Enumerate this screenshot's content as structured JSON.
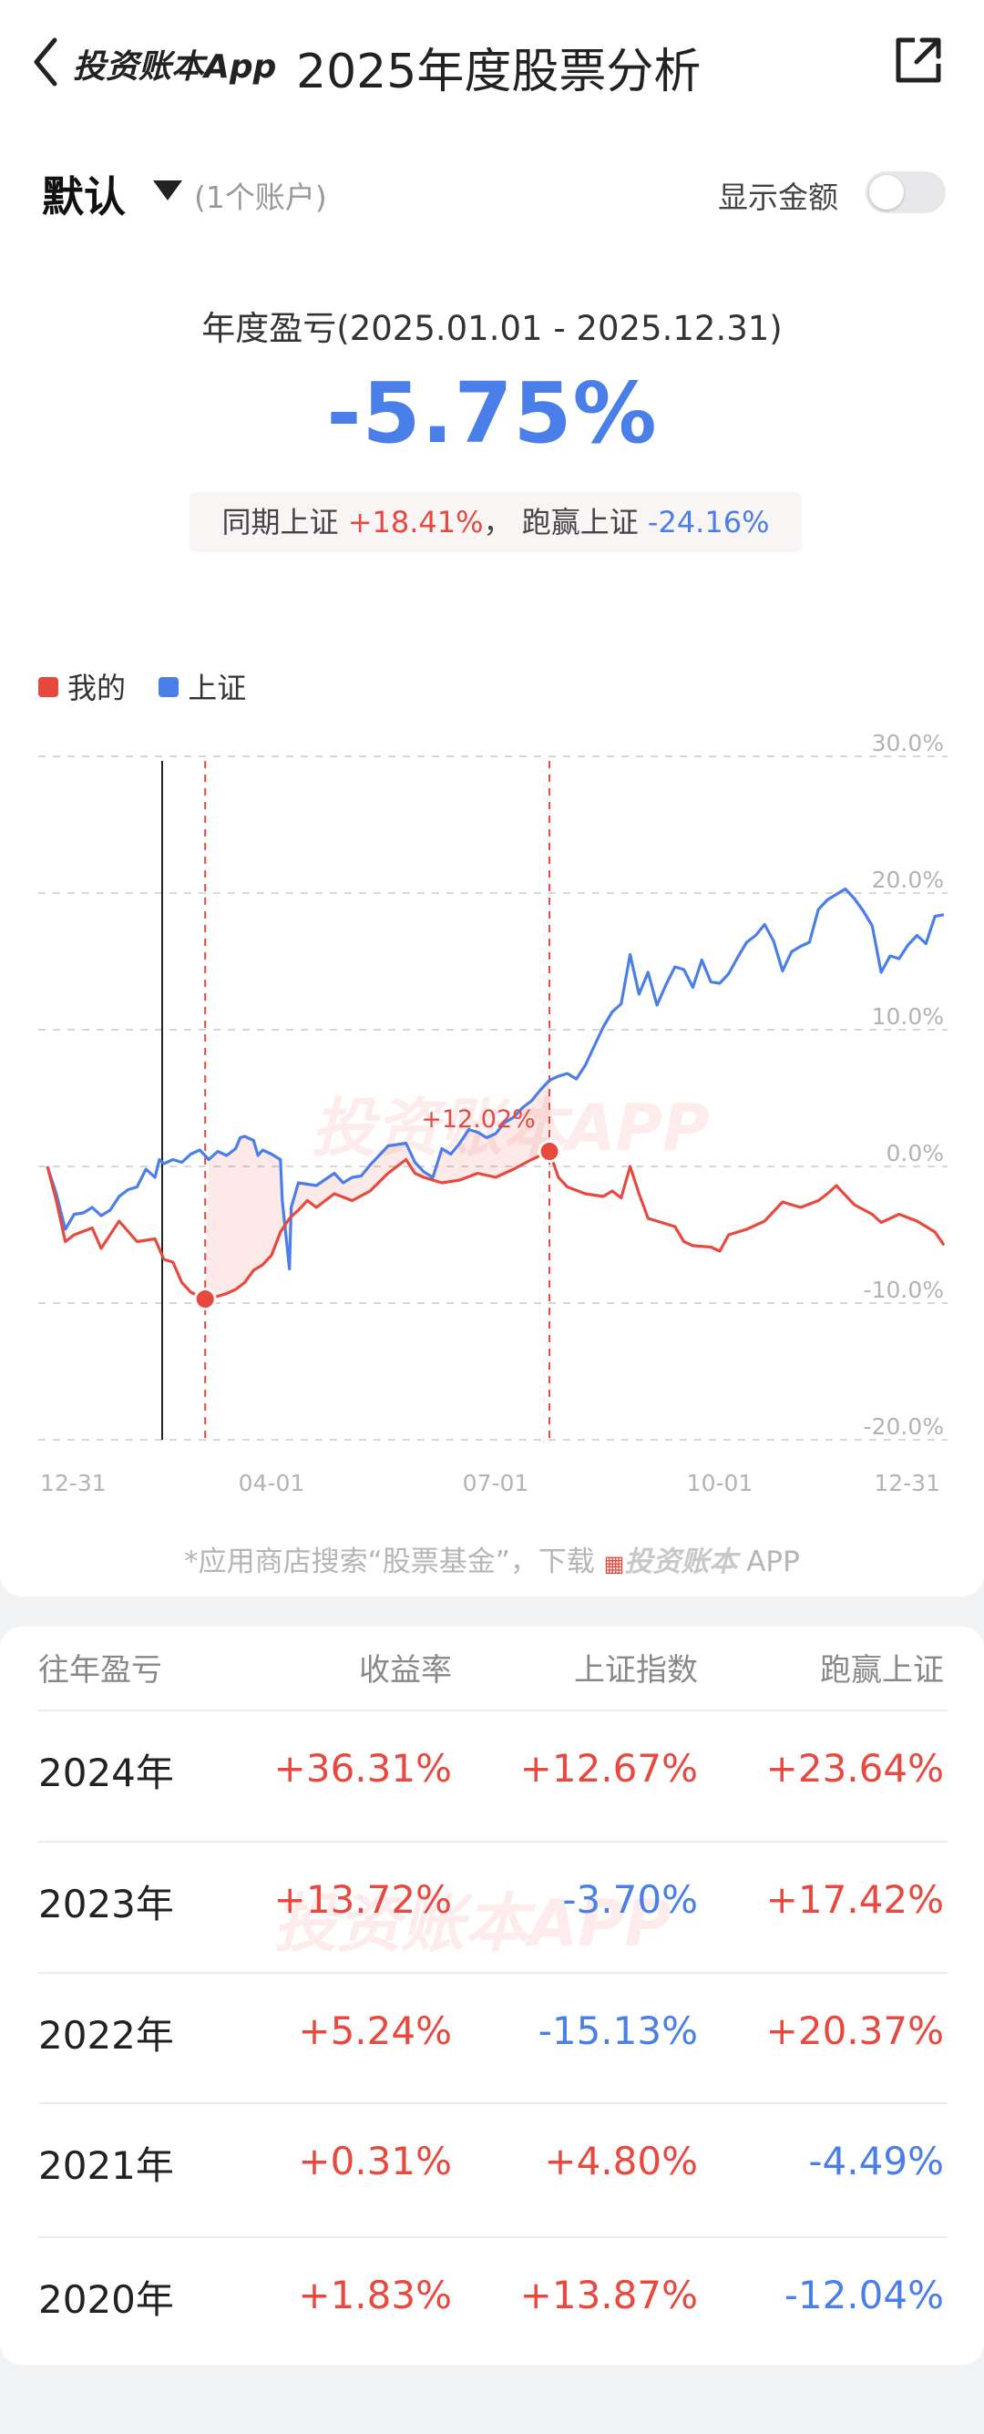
{
  "nav": {
    "logo": "投资账本App",
    "title": "2025年度股票分析",
    "icons": {
      "back": "chevron-left-icon",
      "share": "share-icon"
    }
  },
  "account": {
    "name": "默认",
    "count": "(1个账户)",
    "show_amount_label": "显示金额",
    "show_amount_on": false
  },
  "summary": {
    "period": "年度盈亏(2025.01.01 - 2025.12.31)",
    "return_pct": "-5.75%",
    "bench_label": "同期上证",
    "bench_value": "+18.41%",
    "sep": "，",
    "beat_label": "跑赢上证",
    "beat_value": "-24.16%"
  },
  "legend": {
    "mine": "我的",
    "index": "上证"
  },
  "watermark": "投资账本APP",
  "colors": {
    "mine": "#e8493f",
    "index": "#4a7ee8",
    "positive": "#e8493f",
    "negative": "#4a7ee8"
  },
  "chart_data": {
    "type": "line",
    "x_ticks": [
      "12-31",
      "04-01",
      "07-01",
      "10-01",
      "12-31"
    ],
    "y_ticks": [
      "30.0%",
      "20.0%",
      "10.0%",
      "0.0%",
      "-10.0%",
      "-20.0%"
    ],
    "ylim": [
      -20,
      30
    ],
    "grid": true,
    "legend_position": "top-left",
    "annotation": {
      "label": "+12.02%",
      "x": 0.56
    },
    "markers": [
      {
        "x": 0.176,
        "y": -9.7
      },
      {
        "x": 0.56,
        "y": 1.1
      }
    ],
    "series": [
      {
        "name": "我的",
        "color": "#e8493f",
        "points": [
          [
            0,
            0
          ],
          [
            0.01,
            -2.5
          ],
          [
            0.02,
            -5.5
          ],
          [
            0.03,
            -5
          ],
          [
            0.05,
            -4.5
          ],
          [
            0.06,
            -6
          ],
          [
            0.08,
            -4
          ],
          [
            0.1,
            -5.5
          ],
          [
            0.12,
            -5.3
          ],
          [
            0.13,
            -6.8
          ],
          [
            0.14,
            -7
          ],
          [
            0.15,
            -8.5
          ],
          [
            0.16,
            -9.2
          ],
          [
            0.176,
            -9.7
          ],
          [
            0.19,
            -9.5
          ],
          [
            0.2,
            -9.3
          ],
          [
            0.21,
            -9
          ],
          [
            0.22,
            -8.5
          ],
          [
            0.23,
            -7.6
          ],
          [
            0.24,
            -7.2
          ],
          [
            0.25,
            -6.5
          ],
          [
            0.26,
            -4.8
          ],
          [
            0.27,
            -3.8
          ],
          [
            0.28,
            -3.2
          ],
          [
            0.29,
            -2.5
          ],
          [
            0.3,
            -3
          ],
          [
            0.32,
            -2
          ],
          [
            0.34,
            -2.5
          ],
          [
            0.36,
            -1.8
          ],
          [
            0.38,
            -0.5
          ],
          [
            0.4,
            0.5
          ],
          [
            0.41,
            -0.5
          ],
          [
            0.42,
            -0.8
          ],
          [
            0.44,
            -1.2
          ],
          [
            0.46,
            -1
          ],
          [
            0.48,
            -0.5
          ],
          [
            0.5,
            -0.8
          ],
          [
            0.52,
            -0.2
          ],
          [
            0.54,
            0.5
          ],
          [
            0.56,
            1.1
          ],
          [
            0.57,
            -0.8
          ],
          [
            0.58,
            -1.5
          ],
          [
            0.6,
            -2
          ],
          [
            0.62,
            -2.2
          ],
          [
            0.63,
            -1.8
          ],
          [
            0.64,
            -2.3
          ],
          [
            0.65,
            0
          ],
          [
            0.66,
            -2
          ],
          [
            0.67,
            -3.8
          ],
          [
            0.69,
            -4.2
          ],
          [
            0.7,
            -4.4
          ],
          [
            0.71,
            -5.5
          ],
          [
            0.72,
            -5.8
          ],
          [
            0.74,
            -5.9
          ],
          [
            0.75,
            -6.2
          ],
          [
            0.76,
            -5
          ],
          [
            0.78,
            -4.6
          ],
          [
            0.8,
            -4
          ],
          [
            0.82,
            -2.6
          ],
          [
            0.84,
            -3
          ],
          [
            0.86,
            -2.5
          ],
          [
            0.87,
            -2
          ],
          [
            0.88,
            -1.4
          ],
          [
            0.9,
            -2.8
          ],
          [
            0.92,
            -3.5
          ],
          [
            0.93,
            -4.1
          ],
          [
            0.95,
            -3.5
          ],
          [
            0.97,
            -4
          ],
          [
            0.99,
            -4.8
          ],
          [
            1.0,
            -5.75
          ]
        ]
      },
      {
        "name": "上证",
        "color": "#4a7ee8",
        "points": [
          [
            0,
            0
          ],
          [
            0.01,
            -2
          ],
          [
            0.02,
            -4.6
          ],
          [
            0.03,
            -3.5
          ],
          [
            0.04,
            -3.4
          ],
          [
            0.05,
            -3
          ],
          [
            0.06,
            -3.6
          ],
          [
            0.07,
            -3.2
          ],
          [
            0.08,
            -2.2
          ],
          [
            0.09,
            -1.7
          ],
          [
            0.1,
            -1.5
          ],
          [
            0.11,
            -0.2
          ],
          [
            0.12,
            -0.8
          ],
          [
            0.125,
            0.5
          ],
          [
            0.13,
            0.2
          ],
          [
            0.14,
            0.5
          ],
          [
            0.15,
            0.3
          ],
          [
            0.16,
            0.9
          ],
          [
            0.17,
            1.2
          ],
          [
            0.18,
            0.5
          ],
          [
            0.19,
            1.1
          ],
          [
            0.2,
            0.8
          ],
          [
            0.21,
            1.3
          ],
          [
            0.215,
            2.1
          ],
          [
            0.22,
            2.2
          ],
          [
            0.23,
            1.9
          ],
          [
            0.235,
            0.8
          ],
          [
            0.24,
            1.2
          ],
          [
            0.25,
            0.9
          ],
          [
            0.26,
            0.5
          ],
          [
            0.262,
            -2.5
          ],
          [
            0.27,
            -7.5
          ],
          [
            0.272,
            -3
          ],
          [
            0.28,
            -1.2
          ],
          [
            0.3,
            -1.4
          ],
          [
            0.32,
            -0.5
          ],
          [
            0.33,
            -1.2
          ],
          [
            0.34,
            -0.8
          ],
          [
            0.35,
            -0.7
          ],
          [
            0.36,
            0.1
          ],
          [
            0.37,
            0.8
          ],
          [
            0.38,
            1.5
          ],
          [
            0.39,
            1.6
          ],
          [
            0.4,
            1.7
          ],
          [
            0.41,
            0.3
          ],
          [
            0.42,
            -0.4
          ],
          [
            0.43,
            -0.8
          ],
          [
            0.44,
            1.3
          ],
          [
            0.45,
            0.9
          ],
          [
            0.46,
            1.7
          ],
          [
            0.47,
            2.7
          ],
          [
            0.48,
            2.5
          ],
          [
            0.49,
            2.1
          ],
          [
            0.5,
            2.4
          ],
          [
            0.51,
            3.2
          ],
          [
            0.52,
            3.6
          ],
          [
            0.53,
            4.3
          ],
          [
            0.54,
            4.8
          ],
          [
            0.55,
            5.6
          ],
          [
            0.56,
            6.3
          ],
          [
            0.57,
            6.6
          ],
          [
            0.58,
            6.8
          ],
          [
            0.59,
            6.4
          ],
          [
            0.6,
            7.4
          ],
          [
            0.61,
            8.8
          ],
          [
            0.62,
            10.2
          ],
          [
            0.63,
            11.3
          ],
          [
            0.64,
            11.9
          ],
          [
            0.65,
            15.5
          ],
          [
            0.66,
            12.6
          ],
          [
            0.67,
            14.2
          ],
          [
            0.68,
            11.8
          ],
          [
            0.69,
            13.3
          ],
          [
            0.7,
            14.6
          ],
          [
            0.71,
            14.4
          ],
          [
            0.72,
            13.1
          ],
          [
            0.73,
            15.1
          ],
          [
            0.74,
            13.5
          ],
          [
            0.75,
            13.4
          ],
          [
            0.76,
            14.1
          ],
          [
            0.77,
            15.3
          ],
          [
            0.78,
            16.4
          ],
          [
            0.79,
            16.9
          ],
          [
            0.8,
            17.7
          ],
          [
            0.81,
            16.5
          ],
          [
            0.82,
            14.3
          ],
          [
            0.83,
            15.7
          ],
          [
            0.84,
            16.1
          ],
          [
            0.85,
            16.4
          ],
          [
            0.86,
            18.8
          ],
          [
            0.87,
            19.5
          ],
          [
            0.88,
            19.9
          ],
          [
            0.89,
            20.3
          ],
          [
            0.9,
            19.6
          ],
          [
            0.91,
            18.7
          ],
          [
            0.92,
            17.6
          ],
          [
            0.93,
            14.2
          ],
          [
            0.94,
            15.4
          ],
          [
            0.95,
            15.2
          ],
          [
            0.96,
            16.2
          ],
          [
            0.97,
            16.9
          ],
          [
            0.98,
            16.3
          ],
          [
            0.99,
            18.3
          ],
          [
            1.0,
            18.41
          ]
        ]
      }
    ]
  },
  "table": {
    "headers": [
      "往年盈亏",
      "收益率",
      "上证指数",
      "跑赢上证"
    ],
    "rows": [
      {
        "year": "2024年",
        "ret": "+36.31%",
        "index": "+12.67%",
        "beat": "+23.64%",
        "ret_pos": true,
        "index_pos": true,
        "beat_pos": true
      },
      {
        "year": "2023年",
        "ret": "+13.72%",
        "index": "-3.70%",
        "beat": "+17.42%",
        "ret_pos": true,
        "index_pos": false,
        "beat_pos": true
      },
      {
        "year": "2022年",
        "ret": "+5.24%",
        "index": "-15.13%",
        "beat": "+20.37%",
        "ret_pos": true,
        "index_pos": false,
        "beat_pos": true
      },
      {
        "year": "2021年",
        "ret": "+0.31%",
        "index": "+4.80%",
        "beat": "-4.49%",
        "ret_pos": true,
        "index_pos": true,
        "beat_pos": false
      },
      {
        "year": "2020年",
        "ret": "+1.83%",
        "index": "+13.87%",
        "beat": "-12.04%",
        "ret_pos": true,
        "index_pos": true,
        "beat_pos": false
      }
    ]
  },
  "footnote": {
    "prefix": "*应用商店搜索“股票基金”，下载",
    "brand": "投资账本",
    "suffix": "APP"
  }
}
